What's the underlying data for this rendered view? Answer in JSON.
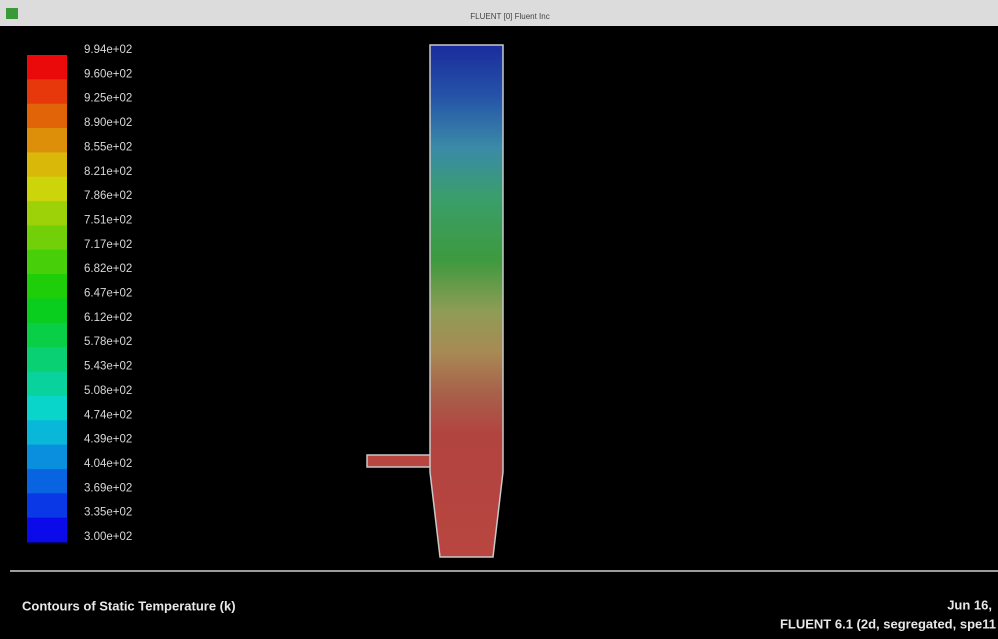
{
  "window": {
    "title": "FLUENT [0] Fluent Inc"
  },
  "colorbar": {
    "labels": [
      "9.94e+02",
      "9.60e+02",
      "9.25e+02",
      "8.90e+02",
      "8.55e+02",
      "8.21e+02",
      "7.86e+02",
      "7.51e+02",
      "7.17e+02",
      "6.82e+02",
      "6.47e+02",
      "6.12e+02",
      "5.78e+02",
      "5.43e+02",
      "5.08e+02",
      "4.74e+02",
      "4.39e+02",
      "4.04e+02",
      "3.69e+02",
      "3.35e+02",
      "3.00e+02"
    ]
  },
  "footer": {
    "caption": "Contours of Static Temperature (k)",
    "date": "Jun 16,",
    "solver": "FLUENT 6.1 (2d, segregated, spe11"
  }
}
